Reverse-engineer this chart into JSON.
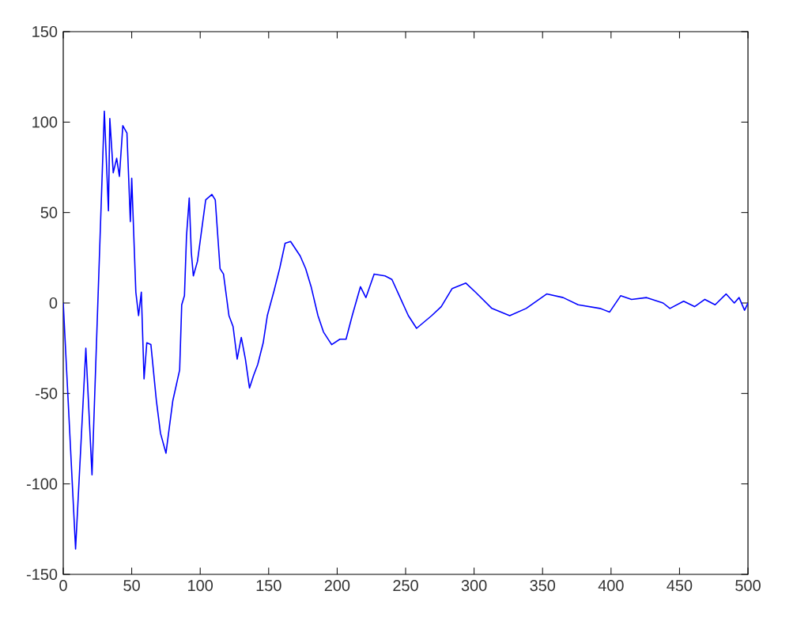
{
  "chart_data": {
    "type": "line",
    "x": [
      0,
      9,
      16.5,
      21,
      30,
      33,
      34,
      36.5,
      39,
      41,
      43.5,
      46.5,
      49,
      50,
      53,
      55,
      57,
      59,
      61,
      64,
      68,
      71,
      75,
      80,
      85,
      86.5,
      88.5,
      90,
      92,
      93.5,
      95,
      98,
      104,
      108.5,
      111,
      114.5,
      117,
      121,
      124,
      127,
      130,
      133,
      136,
      139,
      142,
      146,
      149,
      154,
      158,
      162,
      166,
      173,
      177,
      181,
      186,
      190,
      196,
      202,
      206.5,
      211,
      217,
      221,
      227,
      235,
      240,
      246,
      252,
      258,
      269,
      276,
      284,
      294,
      301,
      313,
      326,
      338,
      353,
      365,
      376,
      392,
      399,
      407,
      415,
      426,
      438,
      443,
      453,
      461,
      468.5,
      476,
      484,
      490,
      493.5,
      497.5,
      500
    ],
    "series": [
      {
        "color": "#0000ff",
        "values": [
          0,
          -136,
          -25,
          -95,
          106,
          51,
          102,
          72,
          80,
          70,
          98,
          94,
          45,
          69,
          6,
          -7,
          6,
          -42,
          -22,
          -23,
          -54,
          -72,
          -83,
          -54,
          -37,
          -1,
          4,
          37,
          58,
          28,
          15,
          23,
          57,
          60,
          57,
          19,
          16,
          -7,
          -13,
          -31,
          -19,
          -31,
          -47,
          -40,
          -34,
          -22,
          -7,
          7,
          19,
          33,
          34,
          26,
          19,
          9,
          -7,
          -16,
          -23,
          -20,
          -20,
          -7,
          9,
          3,
          16,
          15,
          13,
          3,
          -7,
          -14,
          -7,
          -2,
          8,
          11,
          6,
          -3,
          -7,
          -3,
          5,
          3,
          -1,
          -3,
          -5,
          4,
          2,
          3,
          0,
          -3,
          1,
          -2,
          2,
          -1,
          5,
          0,
          3,
          -4,
          0
        ]
      }
    ],
    "xlim": [
      0,
      500
    ],
    "ylim": [
      -150,
      150
    ],
    "xticks": [
      0,
      50,
      100,
      150,
      200,
      250,
      300,
      350,
      400,
      450,
      500
    ],
    "yticks": [
      -150,
      -100,
      -50,
      0,
      50,
      100,
      150
    ],
    "grid": false,
    "line_style": "solid"
  }
}
